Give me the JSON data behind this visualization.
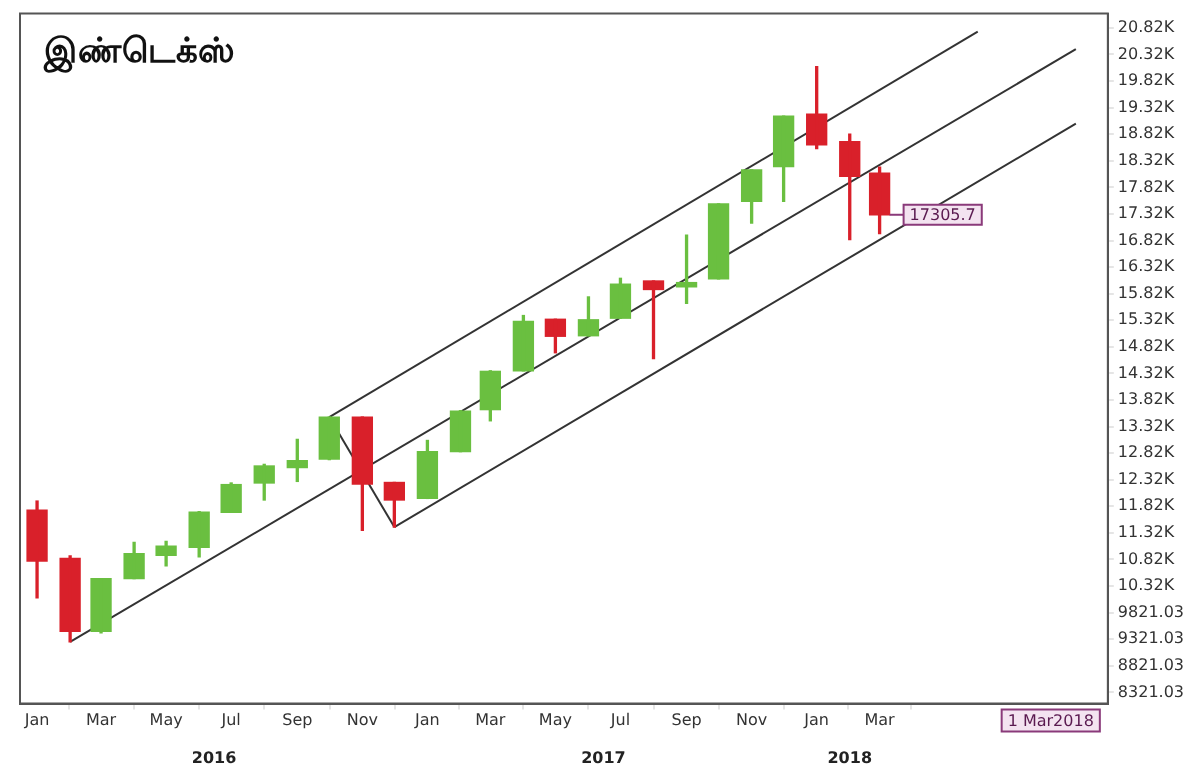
{
  "chart_data": {
    "type": "candlestick",
    "title": "இண்டெக்ஸ்",
    "x": [
      "2016-01",
      "2016-02",
      "2016-03",
      "2016-04",
      "2016-05",
      "2016-06",
      "2016-07",
      "2016-08",
      "2016-09",
      "2016-10",
      "2016-11",
      "2016-12",
      "2017-01",
      "2017-02",
      "2017-03",
      "2017-04",
      "2017-05",
      "2017-06",
      "2017-07",
      "2017-08",
      "2017-09",
      "2017-10",
      "2017-11",
      "2017-12",
      "2018-01",
      "2018-02",
      "2018-03"
    ],
    "ohlc": [
      [
        11750,
        11920,
        10100,
        10790
      ],
      [
        10840,
        10890,
        9270,
        9470
      ],
      [
        9470,
        10460,
        9440,
        10460
      ],
      [
        10460,
        11140,
        10460,
        10930
      ],
      [
        10900,
        11160,
        10700,
        11070
      ],
      [
        11050,
        11720,
        10870,
        11710
      ],
      [
        11710,
        12260,
        11710,
        12230
      ],
      [
        12260,
        12610,
        11940,
        12580
      ],
      [
        12550,
        13080,
        12290,
        12680
      ],
      [
        12710,
        13500,
        12700,
        13500
      ],
      [
        13500,
        13500,
        11370,
        12240
      ],
      [
        12270,
        12270,
        11430,
        11940
      ],
      [
        11970,
        13060,
        11970,
        12850
      ],
      [
        12850,
        13620,
        12850,
        13610
      ],
      [
        13640,
        14370,
        13430,
        14360
      ],
      [
        14370,
        15410,
        14370,
        15300
      ],
      [
        15340,
        15340,
        14710,
        15020
      ],
      [
        15030,
        15760,
        15030,
        15330
      ],
      [
        15360,
        16110,
        15360,
        16000
      ],
      [
        16060,
        16060,
        14600,
        15900
      ],
      [
        15950,
        16920,
        15640,
        16030
      ],
      [
        16100,
        17510,
        16100,
        17510
      ],
      [
        17560,
        18150,
        17150,
        18150
      ],
      [
        18210,
        19160,
        17560,
        19160
      ],
      [
        19200,
        20090,
        18550,
        18620
      ],
      [
        18680,
        18820,
        16840,
        18030
      ],
      [
        18090,
        18200,
        16950,
        17305.7
      ]
    ],
    "colors": [
      "#d9202a",
      "#d9202a",
      "#6abf40",
      "#6abf40",
      "#6abf40",
      "#6abf40",
      "#6abf40",
      "#6abf40",
      "#6abf40",
      "#6abf40",
      "#d9202a",
      "#d9202a",
      "#6abf40",
      "#6abf40",
      "#6abf40",
      "#6abf40",
      "#d9202a",
      "#6abf40",
      "#6abf40",
      "#d9202a",
      "#6abf40",
      "#6abf40",
      "#6abf40",
      "#6abf40",
      "#d9202a",
      "#d9202a",
      "#d9202a"
    ],
    "series": [
      {
        "type": "line",
        "color": "#333333",
        "x": [
          "2016-02",
          "2018-09"
        ],
        "values": [
          9270,
          20420
        ]
      },
      {
        "type": "line",
        "color": "#333333",
        "x": [
          "2016-10",
          "2018-06"
        ],
        "values": [
          13500,
          20750
        ]
      },
      {
        "type": "line",
        "color": "#333333",
        "x": [
          "2016-12",
          "2018-09"
        ],
        "values": [
          11430,
          19020
        ]
      },
      {
        "type": "line",
        "color": "#333333",
        "x": [
          "2016-10",
          "2016-12"
        ],
        "values": [
          13500,
          11430
        ]
      }
    ],
    "xlim": [
      "2015-12-16",
      "2018-10-01"
    ],
    "xticks": [
      {
        "value": "2016-01",
        "label": "Jan"
      },
      {
        "value": "2016-03",
        "label": "Mar"
      },
      {
        "value": "2016-05",
        "label": "May"
      },
      {
        "value": "2016-07",
        "label": "Jul"
      },
      {
        "value": "2016-09",
        "label": "Sep"
      },
      {
        "value": "2016-11",
        "label": "Nov"
      },
      {
        "value": "2017-01",
        "label": "Jan"
      },
      {
        "value": "2017-03",
        "label": "Mar"
      },
      {
        "value": "2017-05",
        "label": "May"
      },
      {
        "value": "2017-07",
        "label": "Jul"
      },
      {
        "value": "2017-09",
        "label": "Sep"
      },
      {
        "value": "2017-11",
        "label": "Nov"
      },
      {
        "value": "2018-01",
        "label": "Jan"
      },
      {
        "value": "2018-03",
        "label": "Mar"
      }
    ],
    "ylim": [
      8110,
      21090
    ],
    "yticks": [
      {
        "value": 8321.03,
        "label": "8321.03"
      },
      {
        "value": 8821.03,
        "label": "8821.03"
      },
      {
        "value": 9321.03,
        "label": "9321.03"
      },
      {
        "value": 9821.03,
        "label": "9821.03"
      },
      {
        "value": 10321.03,
        "label": "10.32K"
      },
      {
        "value": 10821.03,
        "label": "10.82K"
      },
      {
        "value": 11321.03,
        "label": "11.32K"
      },
      {
        "value": 11821.03,
        "label": "11.82K"
      },
      {
        "value": 12321.03,
        "label": "12.32K"
      },
      {
        "value": 12821.03,
        "label": "12.82K"
      },
      {
        "value": 13321.03,
        "label": "13.32K"
      },
      {
        "value": 13821.03,
        "label": "13.82K"
      },
      {
        "value": 14321.03,
        "label": "14.32K"
      },
      {
        "value": 14821.03,
        "label": "14.82K"
      },
      {
        "value": 15321.03,
        "label": "15.32K"
      },
      {
        "value": 15821.03,
        "label": "15.82K"
      },
      {
        "value": 16321.03,
        "label": "16.32K"
      },
      {
        "value": 16821.03,
        "label": "16.82K"
      },
      {
        "value": 17321.03,
        "label": "17.32K"
      },
      {
        "value": 17821.03,
        "label": "17.82K"
      },
      {
        "value": 18321.03,
        "label": "18.32K"
      },
      {
        "value": 18821.03,
        "label": "18.82K"
      },
      {
        "value": 19321.03,
        "label": "19.32K"
      },
      {
        "value": 19821.03,
        "label": "19.82K"
      },
      {
        "value": 20321.03,
        "label": "20.32K"
      },
      {
        "value": 20821.03,
        "label": "20.82K"
      }
    ],
    "x2lim": [
      "2015-12-16",
      "2018-10-01"
    ],
    "x2ticks": [
      {
        "value": "2016-06-15",
        "label": "2016"
      },
      {
        "value": "2017-06-15",
        "label": "2017"
      },
      {
        "value": "2018-02-01",
        "label": "2018"
      }
    ],
    "annotations": [
      {
        "text": "17305.7",
        "x": "2018-03",
        "y": 17305.7
      },
      "1 Mar2018"
    ],
    "grid": false,
    "legend": false
  }
}
